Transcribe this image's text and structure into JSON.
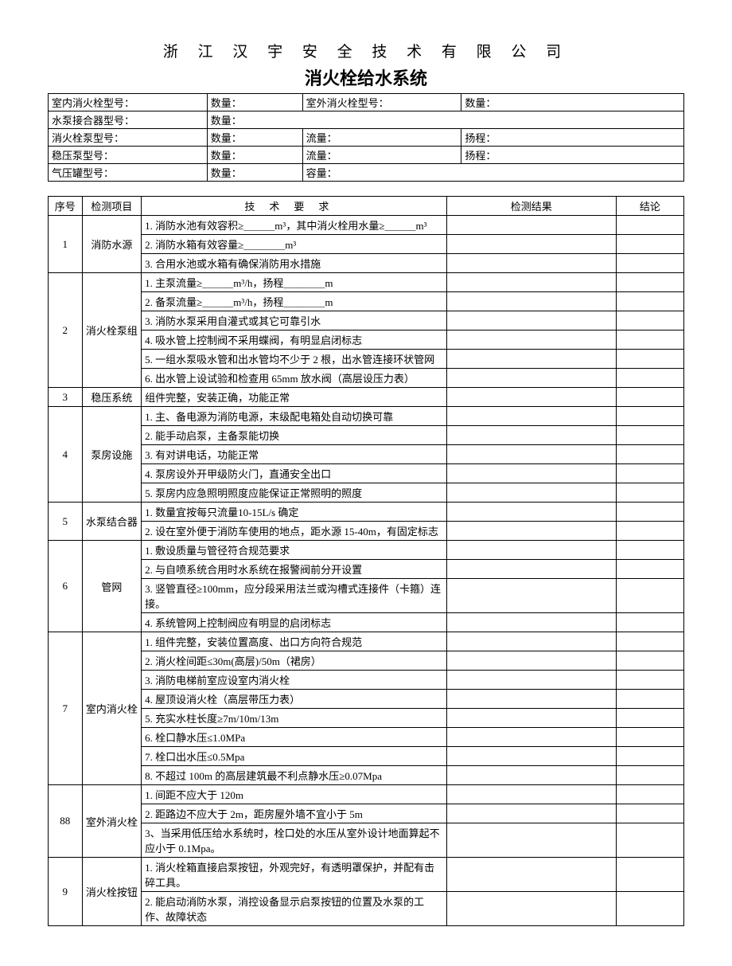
{
  "company": "浙 江 汉 宇 安 全 技 术 有 限 公 司",
  "title": "消火栓给水系统",
  "header": {
    "r1c1": "室内消火栓型号：",
    "r1c2": "数量：",
    "r1c3": "室外消火栓型号：",
    "r1c4": "数量：",
    "r2c1": "水泵接合器型号：",
    "r2c2": "数量：",
    "r3c1": "消火栓泵型号：",
    "r3c2": "数量：",
    "r3c3": "流量：",
    "r3c4": "扬程：",
    "r4c1": "稳压泵型号：",
    "r4c2": "数量：",
    "r4c3": "流量：",
    "r4c4": "扬程：",
    "r5c1": "气压罐型号：",
    "r5c2": "数量：",
    "r5c3": "容量："
  },
  "columns": {
    "seq": "序号",
    "item": "检测项目",
    "req": "技术要求",
    "result": "检测结果",
    "concl": "结论"
  },
  "rows": [
    {
      "seq": "1",
      "item": "消防水源",
      "reqs": [
        "1. 消防水池有效容积≥＿＿＿m³，其中消火栓用水量≥＿＿＿m³",
        "2. 消防水箱有效容量≥＿＿＿＿m³",
        "3. 合用水池或水箱有确保消防用水措施"
      ]
    },
    {
      "seq": "2",
      "item": "消火栓泵组",
      "reqs": [
        "1. 主泵流量≥＿＿＿m³/h，扬程＿＿＿＿m",
        "2. 备泵流量≥＿＿＿m³/h，扬程＿＿＿＿m",
        "3. 消防水泵采用自灌式或其它可靠引水",
        "4. 吸水管上控制阀不采用蝶阀，有明显启闭标志",
        "5. 一组水泵吸水管和出水管均不少于 2 根，出水管连接环状管网",
        "6. 出水管上设试验和检查用 65mm 放水阀（高层设压力表）"
      ]
    },
    {
      "seq": "3",
      "item": "稳压系统",
      "reqs": [
        "组件完整，安装正确，功能正常"
      ]
    },
    {
      "seq": "4",
      "item": "泵房设施",
      "reqs": [
        "1. 主、备电源为消防电源，末级配电箱处自动切换可靠",
        "2. 能手动启泵，主备泵能切换",
        "3. 有对讲电话，功能正常",
        "4. 泵房设外开甲级防火门，直通安全出口",
        "5. 泵房内应急照明照度应能保证正常照明的照度"
      ]
    },
    {
      "seq": "5",
      "item": "水泵结合器",
      "reqs": [
        "1. 数量宜按每只流量10-15L/s 确定",
        "2.  设在室外便于消防车使用的地点，距水源 15-40m，有固定标志"
      ]
    },
    {
      "seq": "6",
      "item": "管网",
      "reqs": [
        "1. 敷设质量与管径符合规范要求",
        "2. 与自喷系统合用时水系统在报警阀前分开设置",
        "3. 竖管直径≥100mm，应分段采用法兰或沟槽式连接件（卡箍）连接。",
        "4. 系统管网上控制阀应有明显的启闭标志"
      ]
    },
    {
      "seq": "7",
      "item": "室内消火栓",
      "reqs": [
        "1. 组件完整，安装位置高度、出口方向符合规范",
        "2. 消火栓间距≤30m(高层)/50m（裙房）",
        "3. 消防电梯前室应设室内消火栓",
        "4. 屋顶设消火栓（高层带压力表）",
        "5. 充实水柱长度≥7m/10m/13m",
        "6. 栓口静水压≤1.0MPa",
        "7. 栓口出水压≤0.5Mpa",
        "8. 不超过 100m 的高层建筑最不利点静水压≥0.07Mpa"
      ]
    },
    {
      "seq": "88",
      "item": "室外消火栓",
      "reqs": [
        "1. 间距不应大于 120m",
        "2. 距路边不应大于 2m，距房屋外墙不宜小于 5m",
        "3、当采用低压给水系统时，栓口处的水压从室外设计地面算起不应小于 0.1Mpa。"
      ]
    },
    {
      "seq": "9",
      "item": "消火栓按钮",
      "reqs": [
        "1. 消火栓箱直接启泵按钮，外观完好，有透明罩保护，并配有击碎工具。",
        "2. 能启动消防水泵，消控设备显示启泵按钮的位置及水泵的工作、故障状态"
      ]
    }
  ]
}
